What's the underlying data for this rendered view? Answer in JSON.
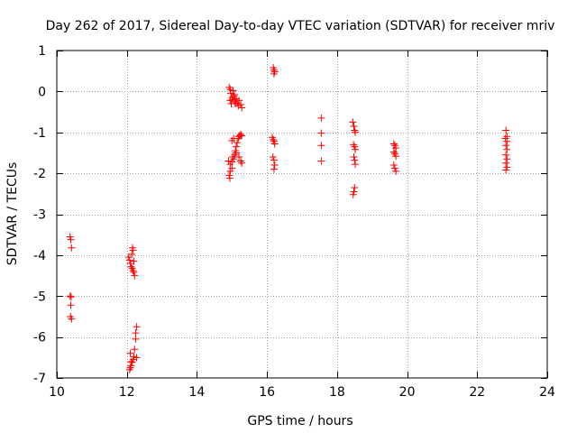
{
  "chart_data": {
    "type": "scatter",
    "title": "Day 262 of 2017, Sidereal Day-to-day VTEC variation (SDTVAR) for receiver mriv",
    "xlabel": "GPS time / hours",
    "ylabel": "SDTVAR / TECUs",
    "xlim": [
      10,
      24
    ],
    "ylim": [
      -7,
      1
    ],
    "xticks": [
      10,
      12,
      14,
      16,
      18,
      20,
      22,
      24
    ],
    "yticks": [
      -7,
      -6,
      -5,
      -4,
      -3,
      -2,
      -1,
      0,
      1
    ],
    "grid": true,
    "marker": "+",
    "color": "#ff0000",
    "series": [
      {
        "name": "SDTVAR",
        "points": [
          [
            10.38,
            -3.55
          ],
          [
            10.4,
            -3.62
          ],
          [
            10.42,
            -3.82
          ],
          [
            10.38,
            -5.0
          ],
          [
            10.41,
            -5.02
          ],
          [
            10.4,
            -5.22
          ],
          [
            10.39,
            -5.5
          ],
          [
            10.42,
            -5.56
          ],
          [
            12.05,
            -4.05
          ],
          [
            12.08,
            -4.12
          ],
          [
            12.1,
            -4.2
          ],
          [
            12.12,
            -4.28
          ],
          [
            12.15,
            -4.32
          ],
          [
            12.18,
            -4.38
          ],
          [
            12.2,
            -4.42
          ],
          [
            12.22,
            -4.5
          ],
          [
            12.16,
            -3.82
          ],
          [
            12.18,
            -3.88
          ],
          [
            12.14,
            -3.98
          ],
          [
            12.2,
            -4.15
          ],
          [
            12.08,
            -6.8
          ],
          [
            12.1,
            -6.75
          ],
          [
            12.12,
            -6.7
          ],
          [
            12.15,
            -6.62
          ],
          [
            12.18,
            -6.55
          ],
          [
            12.2,
            -6.48
          ],
          [
            12.22,
            -6.3
          ],
          [
            12.25,
            -6.05
          ],
          [
            12.28,
            -5.75
          ],
          [
            12.12,
            -6.6
          ],
          [
            12.25,
            -5.9
          ],
          [
            12.28,
            -6.5
          ],
          [
            12.1,
            -6.4
          ],
          [
            14.92,
            0.1
          ],
          [
            14.95,
            0.05
          ],
          [
            14.97,
            -0.05
          ],
          [
            15.0,
            -0.15
          ],
          [
            15.02,
            -0.2
          ],
          [
            15.05,
            -0.12
          ],
          [
            15.08,
            -0.25
          ],
          [
            15.1,
            -0.3
          ],
          [
            15.12,
            -0.18
          ],
          [
            15.15,
            -0.28
          ],
          [
            15.18,
            -0.35
          ],
          [
            15.2,
            -0.22
          ],
          [
            15.25,
            -0.32
          ],
          [
            15.28,
            -0.4
          ],
          [
            14.98,
            -0.3
          ],
          [
            15.03,
            0.02
          ],
          [
            15.07,
            -0.08
          ],
          [
            14.95,
            -0.22
          ],
          [
            14.9,
            -1.7
          ],
          [
            14.95,
            -1.78
          ],
          [
            15.0,
            -1.72
          ],
          [
            15.02,
            -1.6
          ],
          [
            15.05,
            -1.65
          ],
          [
            15.08,
            -1.55
          ],
          [
            15.1,
            -1.45
          ],
          [
            15.12,
            -1.35
          ],
          [
            15.15,
            -1.25
          ],
          [
            15.18,
            -1.15
          ],
          [
            15.2,
            -1.1
          ],
          [
            15.22,
            -1.08
          ],
          [
            15.25,
            -1.05
          ],
          [
            15.28,
            -1.08
          ],
          [
            15.0,
            -1.2
          ],
          [
            15.05,
            -1.15
          ],
          [
            15.12,
            -1.5
          ],
          [
            15.2,
            -1.6
          ],
          [
            15.25,
            -1.7
          ],
          [
            15.28,
            -1.75
          ],
          [
            14.95,
            -1.95
          ],
          [
            14.92,
            -2.05
          ],
          [
            14.94,
            -2.12
          ],
          [
            15.0,
            -1.88
          ],
          [
            16.18,
            0.58
          ],
          [
            16.2,
            0.52
          ],
          [
            16.22,
            0.48
          ],
          [
            16.2,
            0.43
          ],
          [
            16.15,
            -1.12
          ],
          [
            16.18,
            -1.18
          ],
          [
            16.2,
            -1.22
          ],
          [
            16.22,
            -1.28
          ],
          [
            16.17,
            -1.6
          ],
          [
            16.2,
            -1.68
          ],
          [
            16.22,
            -1.8
          ],
          [
            16.2,
            -1.9
          ],
          [
            17.55,
            -0.65
          ],
          [
            17.55,
            -1.02
          ],
          [
            17.55,
            -1.32
          ],
          [
            17.55,
            -1.7
          ],
          [
            18.45,
            -0.75
          ],
          [
            18.48,
            -0.85
          ],
          [
            18.5,
            -0.95
          ],
          [
            18.52,
            -1.0
          ],
          [
            18.47,
            -1.3
          ],
          [
            18.5,
            -1.35
          ],
          [
            18.52,
            -1.42
          ],
          [
            18.48,
            -1.6
          ],
          [
            18.5,
            -1.68
          ],
          [
            18.52,
            -1.78
          ],
          [
            18.5,
            -2.35
          ],
          [
            18.48,
            -2.45
          ],
          [
            18.46,
            -2.52
          ],
          [
            19.62,
            -1.28
          ],
          [
            19.65,
            -1.32
          ],
          [
            19.68,
            -1.38
          ],
          [
            19.62,
            -1.48
          ],
          [
            19.65,
            -1.52
          ],
          [
            19.68,
            -1.58
          ],
          [
            19.62,
            -1.8
          ],
          [
            19.65,
            -1.88
          ],
          [
            19.68,
            -1.95
          ],
          [
            22.82,
            -0.95
          ],
          [
            22.85,
            -1.1
          ],
          [
            22.8,
            -1.15
          ],
          [
            22.85,
            -1.22
          ],
          [
            22.82,
            -1.32
          ],
          [
            22.85,
            -1.42
          ],
          [
            22.82,
            -1.55
          ],
          [
            22.85,
            -1.65
          ],
          [
            22.82,
            -1.75
          ],
          [
            22.85,
            -1.85
          ],
          [
            22.82,
            -1.92
          ]
        ]
      }
    ]
  }
}
